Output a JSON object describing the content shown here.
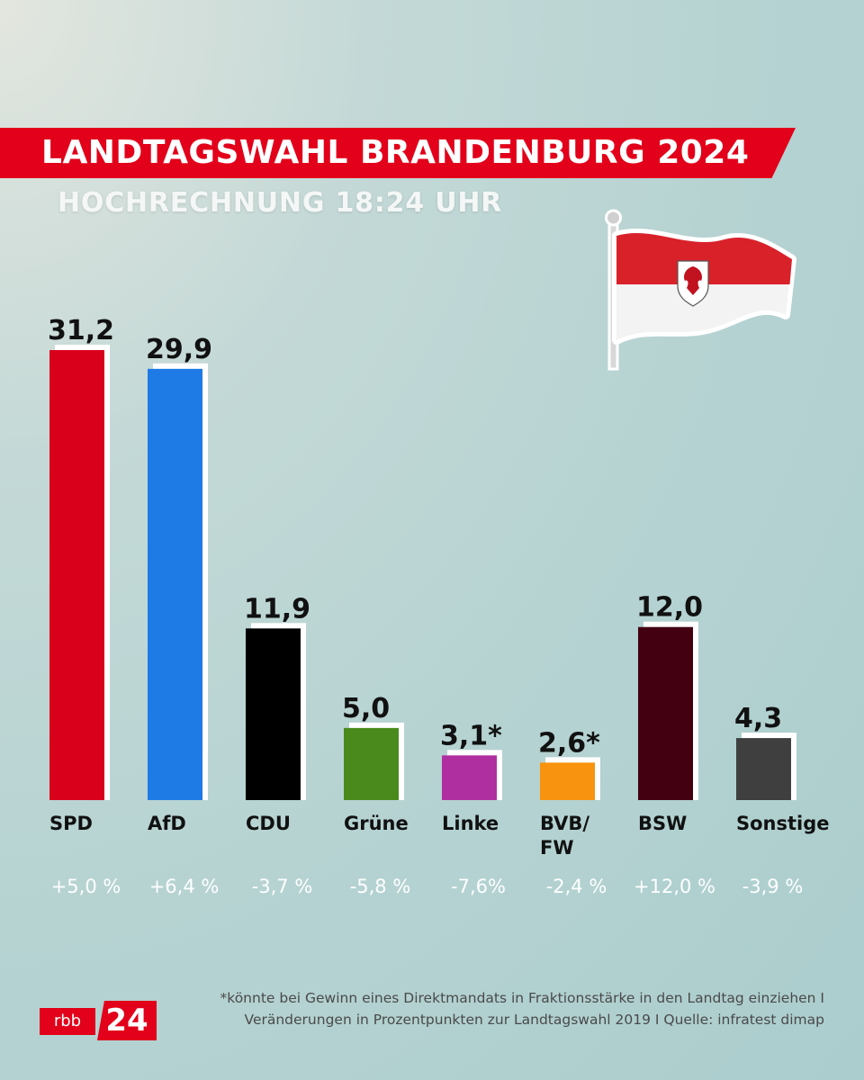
{
  "header": {
    "title": "LANDTAGSWAHL BRANDENBURG 2024",
    "subtitle": "HOCHRECHNUNG 18:24 UHR"
  },
  "chart_data": {
    "type": "bar",
    "title": "LANDTAGSWAHL BRANDENBURG 2024",
    "subtitle": "HOCHRECHNUNG 18:24 UHR",
    "categories": [
      "SPD",
      "AfD",
      "CDU",
      "Grüne",
      "Linke",
      "BVB/FW",
      "BSW",
      "Sonstige"
    ],
    "category_lines": [
      [
        "SPD"
      ],
      [
        "AfD"
      ],
      [
        "CDU"
      ],
      [
        "Grüne"
      ],
      [
        "Linke"
      ],
      [
        "BVB/",
        "FW"
      ],
      [
        "BSW"
      ],
      [
        "Sonstige"
      ]
    ],
    "values": [
      31.2,
      29.9,
      11.9,
      5.0,
      3.1,
      2.6,
      12.0,
      4.3
    ],
    "value_labels": [
      "31,2",
      "29,9",
      "11,9",
      "5,0",
      "3,1*",
      "2,6*",
      "12,0",
      "4,3"
    ],
    "changes": [
      "+5,0 %",
      "+6,4 %",
      "-3,7 %",
      "-5,8 %",
      "-7,6%",
      "-2,4 %",
      "+12,0 %",
      "-3,9 %"
    ],
    "colors": [
      "#d9001b",
      "#1e7be6",
      "#000000",
      "#4a8a1c",
      "#b02fa0",
      "#f7930f",
      "#430011",
      "#3f3f3f"
    ],
    "ylim": [
      0,
      31.2
    ],
    "grid": false,
    "legend": "none"
  },
  "footer": {
    "footnote_line1": "*könnte bei Gewinn eines Direktmandats in Fraktionsstärke in den Landtag einziehen I",
    "footnote_line2": "Veränderungen in Prozentpunkten zur Landtagswahl 2019 I Quelle: infratest dimap",
    "logo_rbb": "rbb",
    "logo_24": "24"
  },
  "icons": [
    "brandenburg-flag-icon"
  ]
}
